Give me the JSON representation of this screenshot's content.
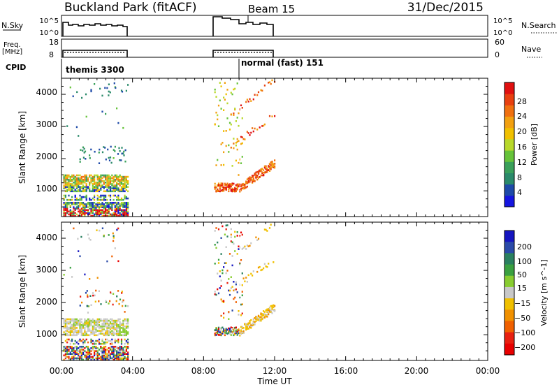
{
  "header": {
    "station": "Buckland Park (fitACF)",
    "beam": "Beam 15",
    "date": "31/Dec/2015"
  },
  "ops": {
    "nsky_label": "N.Sky",
    "nsky_ticks": [
      "10^5",
      "10^0"
    ],
    "nsearch_label": "N.Search",
    "nsearch_ticks": [
      "10^5",
      "10^0"
    ],
    "freq_label": "Freq.",
    "freq_unit": "[MHz]",
    "freq_ticks": [
      "18",
      "8"
    ],
    "nave_label": "Nave",
    "nave_ticks": [
      "60",
      "0"
    ],
    "cpid_label": "CPID",
    "cpid_entries": [
      "themis 3300",
      "normal (fast) 151"
    ]
  },
  "colors": {
    "power": [
      "#1515e0",
      "#1e4aa8",
      "#2a8a6a",
      "#3aa05a",
      "#66c33a",
      "#b8d82a",
      "#f0c000",
      "#f2a010",
      "#f07010",
      "#e84010",
      "#e01010"
    ],
    "velocity": [
      "#1515c0",
      "#2a4aa8",
      "#2a8060",
      "#3aa040",
      "#88cc30",
      "#c8c8c8",
      "#f0c000",
      "#f09000",
      "#f06000",
      "#e82010",
      "#e80000"
    ]
  },
  "chart_data": [
    {
      "type": "heatmap",
      "name": "power",
      "ylabel": "Slant Range [km]",
      "yticks": [
        "1000",
        "2000",
        "3000",
        "4000"
      ],
      "ylim": [
        200,
        4500
      ],
      "xlim_hours": [
        0,
        24
      ],
      "colorbar_label": "Power [dB]",
      "colorbar_ticks": [
        "4",
        "8",
        "12",
        "16",
        "20",
        "24",
        "28"
      ],
      "colorbar_range": [
        0,
        32
      ]
    },
    {
      "type": "heatmap",
      "name": "velocity",
      "ylabel": "Slant Range [km]",
      "yticks": [
        "1000",
        "2000",
        "3000",
        "4000"
      ],
      "ylim": [
        200,
        4500
      ],
      "xlim_hours": [
        0,
        24
      ],
      "xlabel": "Time UT",
      "xticks": [
        "00:00",
        "04:00",
        "08:00",
        "12:00",
        "16:00",
        "20:00",
        "00:00"
      ],
      "colorbar_label": "Velocity [m s^-1]",
      "colorbar_ticks": [
        "200",
        "100",
        "50",
        "15",
        "−15",
        "−50",
        "−100",
        "−200"
      ]
    }
  ]
}
